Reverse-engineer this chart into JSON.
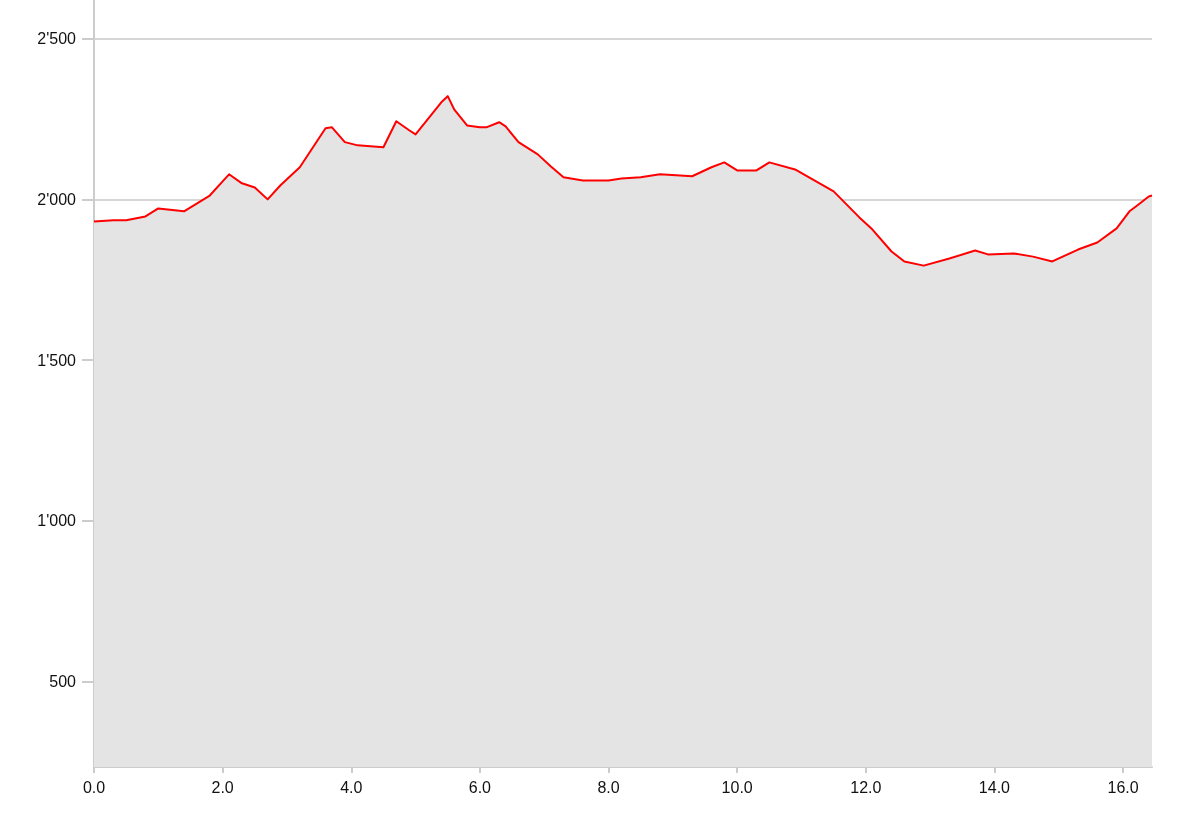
{
  "chart_data": {
    "type": "area",
    "x": [
      0,
      0.3,
      0.5,
      0.8,
      1.0,
      1.4,
      1.8,
      2.0,
      2.1,
      2.3,
      2.5,
      2.7,
      2.9,
      3.2,
      3.6,
      3.7,
      3.9,
      4.1,
      4.3,
      4.5,
      4.7,
      4.9,
      5.0,
      5.2,
      5.4,
      5.5,
      5.6,
      5.8,
      6.0,
      6.1,
      6.3,
      6.4,
      6.6,
      6.9,
      7.1,
      7.3,
      7.6,
      8.0,
      8.2,
      8.5,
      8.8,
      9.3,
      9.6,
      9.8,
      10.0,
      10.3,
      10.5,
      10.9,
      11.2,
      11.5,
      11.9,
      12.1,
      12.4,
      12.6,
      12.9,
      13.3,
      13.7,
      13.9,
      14.3,
      14.6,
      14.9,
      15.3,
      15.6,
      15.9,
      16.1,
      16.2,
      16.4,
      16.45
    ],
    "series": [
      {
        "color": "#ff0000",
        "values": [
          1931,
          1935,
          1935,
          1947,
          1972,
          1963,
          2012,
          2056,
          2078,
          2050,
          2037,
          2000,
          2044,
          2100,
          2221,
          2224,
          2178,
          2168,
          2165,
          2162,
          2243,
          2215,
          2202,
          2252,
          2302,
          2321,
          2280,
          2230,
          2224,
          2224,
          2240,
          2227,
          2178,
          2140,
          2103,
          2069,
          2059,
          2059,
          2065,
          2069,
          2078,
          2072,
          2100,
          2115,
          2090,
          2090,
          2115,
          2093,
          2059,
          2025,
          1944,
          1907,
          1838,
          1807,
          1794,
          1816,
          1841,
          1829,
          1832,
          1822,
          1807,
          1844,
          1866,
          1910,
          1963,
          1978,
          2009,
          2012
        ]
      }
    ],
    "xlim": [
      0,
      16.45
    ],
    "xticks": [
      {
        "value": 0,
        "label": "0.0"
      },
      {
        "value": 2,
        "label": "2.0"
      },
      {
        "value": 4,
        "label": "4.0"
      },
      {
        "value": 6,
        "label": "6.0"
      },
      {
        "value": 8,
        "label": "8.0"
      },
      {
        "value": 10,
        "label": "10.0"
      },
      {
        "value": 12,
        "label": "12.0"
      },
      {
        "value": 14,
        "label": "14.0"
      },
      {
        "value": 16,
        "label": "16.0"
      }
    ],
    "ylim": [
      235,
      2620
    ],
    "yticks": [
      500,
      {
        "value": 1000,
        "label": "1'000"
      },
      {
        "value": 1500,
        "label": "1'500"
      },
      {
        "value": 2000,
        "label": "2'000"
      },
      {
        "value": 2500,
        "label": "2'500"
      }
    ],
    "grid": "y",
    "marker": "none",
    "line_style": "solid"
  }
}
